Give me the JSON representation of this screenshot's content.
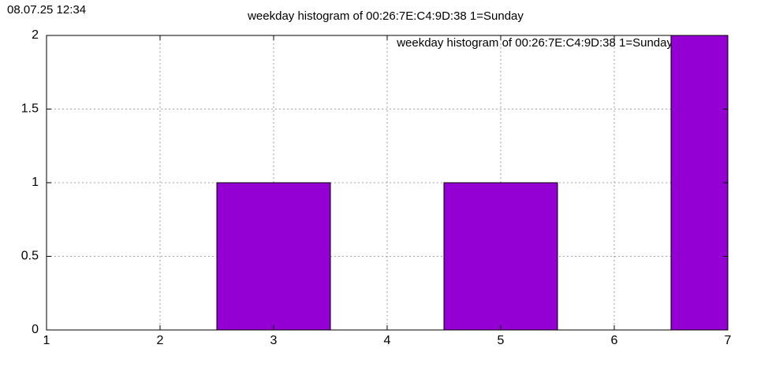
{
  "timestamp": "08.07.25 12:34",
  "chart_data": {
    "type": "bar",
    "title": "weekday histogram of 00:26:7E:C4:9D:38 1=Sunday",
    "series": [
      {
        "name": "weekday histogram of 00:26:7E:C4:9D:38 1=Sunday",
        "color": "#9400d3",
        "x": [
          3,
          5,
          7
        ],
        "values": [
          1,
          1,
          2
        ]
      }
    ],
    "xlim": [
      1,
      7
    ],
    "xticks": [
      1,
      2,
      3,
      4,
      5,
      6,
      7
    ],
    "ylim": [
      0,
      2
    ],
    "yticks": [
      0,
      0.5,
      1,
      1.5,
      2
    ],
    "grid": true,
    "legend": "top-right"
  }
}
